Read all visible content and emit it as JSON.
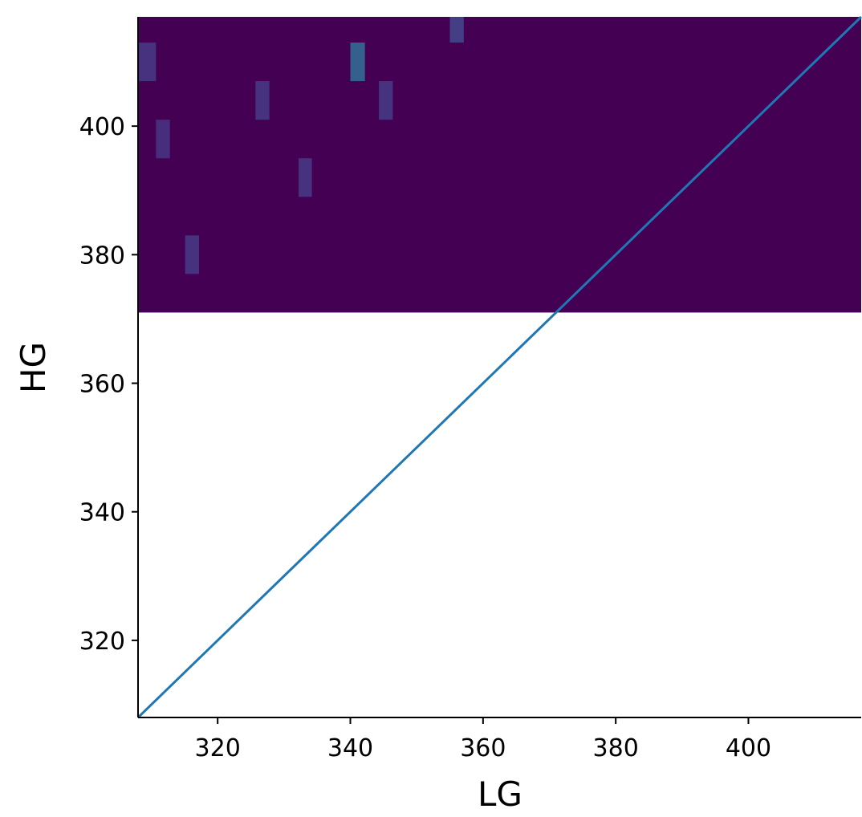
{
  "chart_data": {
    "type": "heatmap",
    "title": "",
    "xlabel": "LG",
    "ylabel": "HG",
    "xlim": [
      308,
      417
    ],
    "ylim": [
      308,
      417
    ],
    "xticks": [
      320,
      340,
      360,
      380,
      400
    ],
    "yticks": [
      320,
      340,
      360,
      380,
      400
    ],
    "grid": false,
    "legend": "none",
    "colormap": "viridis",
    "background_region": {
      "x_range": [
        308,
        417
      ],
      "y_range": [
        371,
        417
      ],
      "color": "#440154"
    },
    "cells": [
      {
        "x": [
          308,
          310.7
        ],
        "y": [
          407,
          413
        ],
        "color": "#46327e"
      },
      {
        "x": [
          310.7,
          312.8
        ],
        "y": [
          395,
          401
        ],
        "color": "#472d7b"
      },
      {
        "x": [
          315.1,
          317.2
        ],
        "y": [
          377,
          383
        ],
        "color": "#46327e"
      },
      {
        "x": [
          325.7,
          327.8
        ],
        "y": [
          401,
          407
        ],
        "color": "#46327e"
      },
      {
        "x": [
          332.2,
          334.2
        ],
        "y": [
          389,
          395
        ],
        "color": "#46327e"
      },
      {
        "x": [
          340.0,
          342.2
        ],
        "y": [
          407,
          413
        ],
        "color": "#355f8d"
      },
      {
        "x": [
          344.3,
          346.4
        ],
        "y": [
          401,
          407
        ],
        "color": "#46327e"
      },
      {
        "x": [
          355.0,
          357.1
        ],
        "y": [
          413,
          417
        ],
        "color": "#433e85"
      }
    ],
    "reference_line": {
      "x": [
        308,
        417
      ],
      "y": [
        308,
        417
      ],
      "color": "#1f77b4"
    }
  }
}
